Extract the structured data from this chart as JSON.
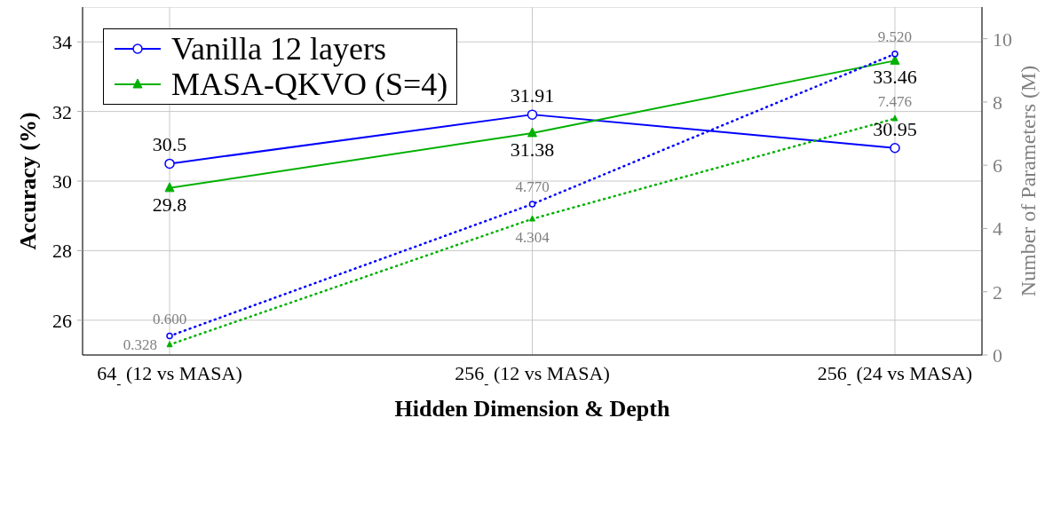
{
  "chart_data": {
    "type": "line",
    "xlabel": "Hidden Dimension & Depth",
    "ylabel": "Accuracy (%)",
    "y2label": "Number of Parameters (M)",
    "categories": [
      "64$_{-}$ (12 vs MASA)",
      "256$_{-}$ (12 vs MASA)",
      "256$_{-}$ (24 vs MASA)"
    ],
    "series": [
      {
        "name": "Vanilla 12 layers",
        "color": "#0000ff",
        "values": [
          30.5,
          31.91,
          30.95
        ],
        "marker": "circle",
        "line_style": "solid"
      },
      {
        "name": "MASA-QKVO (S=4)",
        "color": "#00b000",
        "values": [
          29.8,
          31.38,
          33.46
        ],
        "marker": "triangle",
        "line_style": "solid"
      },
      {
        "color": "#0000ff",
        "values": [
          0.6,
          4.77,
          9.52
        ],
        "value_labels": [
          "0.600",
          "4.770",
          "9.520"
        ],
        "axis": "y2",
        "marker": "circle",
        "line_style": "dotted"
      },
      {
        "color": "#00b000",
        "values": [
          0.328,
          4.304,
          7.476
        ],
        "value_labels": [
          "0.328",
          "4.304",
          "7.476"
        ],
        "axis": "y2",
        "marker": "triangle",
        "line_style": "dotted"
      }
    ],
    "ylim": [
      25,
      35
    ],
    "yticks": [
      26,
      28,
      30,
      32,
      34
    ],
    "y2lim": [
      0,
      11
    ],
    "y2ticks": [
      0,
      2,
      4,
      6,
      8,
      10
    ],
    "grid": true,
    "legend": "top left",
    "data_labels": true
  }
}
